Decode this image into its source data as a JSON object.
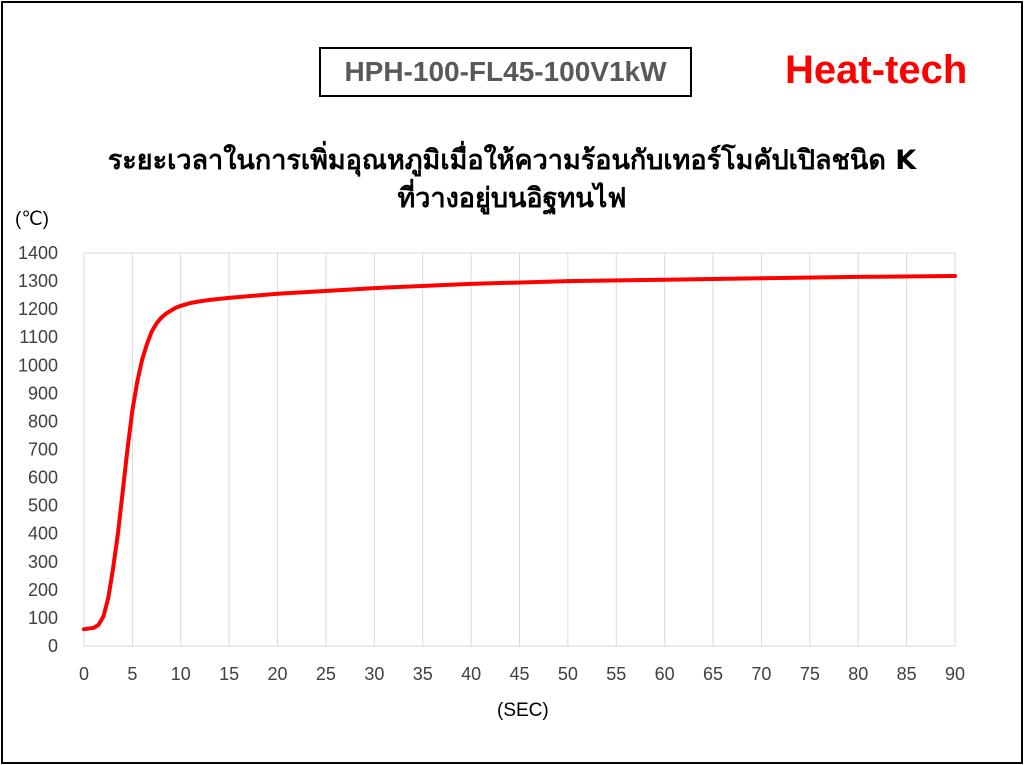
{
  "header": {
    "model": "HPH-100-FL45-100V1kW",
    "brand": "Heat-tech"
  },
  "colors": {
    "line": "#ff0000",
    "brand": "#ff0000",
    "grid": "#d9d9d9",
    "text": "#404040"
  },
  "chart_data": {
    "type": "line",
    "title_line1": "ระยะเวลาในการเพิ่มอุณหภูมิเมื่อให้ความร้อนกับเทอร์โมคัปเปิลชนิด K",
    "title_line2": "ที่วางอยู่บนอิฐทนไฟ",
    "ylabel": "(℃)",
    "xlabel": "(SEC)",
    "xlim": [
      0,
      90
    ],
    "ylim": [
      0,
      1400
    ],
    "xticks": [
      0,
      5,
      10,
      15,
      20,
      25,
      30,
      35,
      40,
      45,
      50,
      55,
      60,
      65,
      70,
      75,
      80,
      85,
      90
    ],
    "yticks": [
      0,
      100,
      200,
      300,
      400,
      500,
      600,
      700,
      800,
      900,
      1000,
      1100,
      1200,
      1300,
      1400
    ],
    "grid": "vertical",
    "legend": "none",
    "series": [
      {
        "x": [
          0,
          1,
          1.5,
          2,
          2.5,
          3,
          3.5,
          4,
          4.5,
          5,
          5.5,
          6,
          6.5,
          7,
          7.5,
          8,
          8.5,
          9,
          9.5,
          10,
          11,
          12,
          13,
          15,
          20,
          30,
          40,
          50,
          60,
          70,
          80,
          90
        ],
        "y": [
          60,
          65,
          75,
          105,
          170,
          275,
          400,
          550,
          705,
          840,
          940,
          1020,
          1075,
          1120,
          1150,
          1170,
          1185,
          1195,
          1205,
          1212,
          1222,
          1228,
          1233,
          1240,
          1255,
          1275,
          1290,
          1300,
          1305,
          1310,
          1315,
          1318
        ]
      }
    ]
  }
}
